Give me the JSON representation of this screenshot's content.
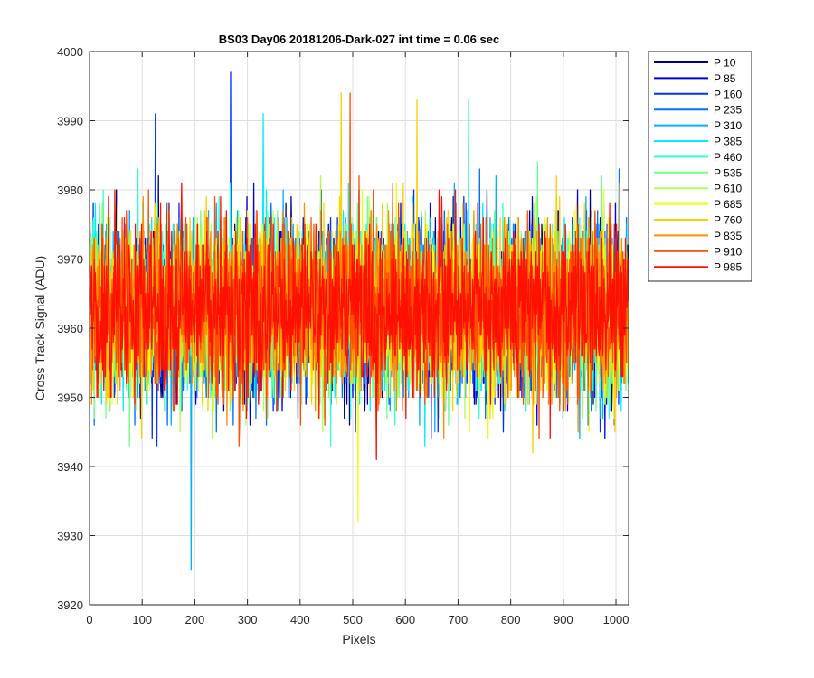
{
  "chart_data": {
    "type": "line",
    "title": "BS03 Day06 20181206-Dark-027 int time = 0.06 sec",
    "xlabel": "Pixels",
    "ylabel": "Cross Track Signal (ADU)",
    "xlim": [
      0,
      1024
    ],
    "ylim": [
      3920,
      4000
    ],
    "xticks": [
      0,
      100,
      200,
      300,
      400,
      500,
      600,
      700,
      800,
      900,
      1000
    ],
    "yticks": [
      3920,
      3930,
      3940,
      3950,
      3960,
      3970,
      3980,
      3990,
      4000
    ],
    "grid": true,
    "legend_position": "outside-top-right",
    "noise_description": "Dense dark-frame noise around a mean of ~3963 ADU with spread of roughly ±8 ADU; individual excursions reach ~3925 and ~3997.",
    "series": [
      {
        "name": "P 10",
        "color": "#00008f",
        "mean": 3963,
        "sd": 6
      },
      {
        "name": "P 85",
        "color": "#0000db",
        "mean": 3963,
        "sd": 6
      },
      {
        "name": "P 160",
        "color": "#0030ff",
        "mean": 3963,
        "sd": 6
      },
      {
        "name": "P 235",
        "color": "#0070ff",
        "mean": 3963,
        "sd": 6
      },
      {
        "name": "P 310",
        "color": "#00b0ff",
        "mean": 3963,
        "sd": 6
      },
      {
        "name": "P 385",
        "color": "#00efff",
        "mean": 3963,
        "sd": 6
      },
      {
        "name": "P 460",
        "color": "#30ffcf",
        "mean": 3963,
        "sd": 6
      },
      {
        "name": "P 535",
        "color": "#70ff8f",
        "mean": 3963,
        "sd": 6
      },
      {
        "name": "P 610",
        "color": "#afff50",
        "mean": 3963,
        "sd": 6
      },
      {
        "name": "P 685",
        "color": "#efff10",
        "mean": 3963,
        "sd": 6
      },
      {
        "name": "P 760",
        "color": "#ffcf00",
        "mean": 3963,
        "sd": 6
      },
      {
        "name": "P 835",
        "color": "#ff8f00",
        "mean": 3963,
        "sd": 6
      },
      {
        "name": "P 910",
        "color": "#ff5000",
        "mean": 3963,
        "sd": 6
      },
      {
        "name": "P 985",
        "color": "#ff1000",
        "mean": 3963,
        "sd": 6
      }
    ],
    "notable_spikes": [
      {
        "series": "P 310",
        "x": 193,
        "y": 3925
      },
      {
        "series": "P 160",
        "x": 268,
        "y": 3997
      },
      {
        "series": "P 760",
        "x": 478,
        "y": 3994
      },
      {
        "series": "P 910",
        "x": 495,
        "y": 3994
      },
      {
        "series": "P 685",
        "x": 510,
        "y": 3932
      },
      {
        "series": "P 760",
        "x": 622,
        "y": 3993
      },
      {
        "series": "P 460",
        "x": 720,
        "y": 3993
      },
      {
        "series": "P 160",
        "x": 125,
        "y": 3991
      },
      {
        "series": "P 385",
        "x": 330,
        "y": 3991
      }
    ]
  }
}
